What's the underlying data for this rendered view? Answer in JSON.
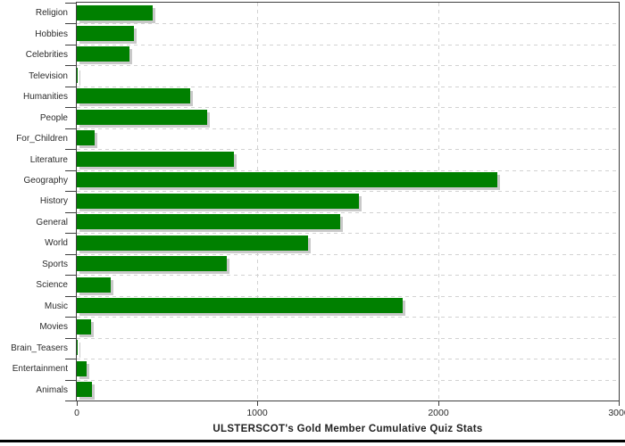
{
  "chart_data": {
    "type": "bar",
    "orientation": "horizontal",
    "title": "ULSTERSCOT's Gold Member Cumulative Quiz Stats",
    "categories": [
      "Religion",
      "Hobbies",
      "Celebrities",
      "Television",
      "Humanities",
      "People",
      "For_Children",
      "Literature",
      "Geography",
      "History",
      "General",
      "World",
      "Sports",
      "Science",
      "Music",
      "Movies",
      "Brain_Teasers",
      "Entertainment",
      "Animals"
    ],
    "values": [
      420,
      315,
      290,
      5,
      630,
      720,
      100,
      870,
      2330,
      1560,
      1460,
      1280,
      830,
      190,
      1805,
      80,
      5,
      55,
      85
    ],
    "xlabel": "",
    "ylabel": "",
    "xlim": [
      0,
      3000
    ],
    "xticks": [
      0,
      1000,
      2000,
      3000
    ],
    "grid": true,
    "legend": false,
    "bar_color": "#008000",
    "shadow_color": "#c9c9c9",
    "grid_color": "#d2d2d2",
    "axis_color": "#3f3f3f",
    "text_color": "#2b2b2b",
    "background": "#ffffff",
    "bottom_edge_color": "#000000"
  }
}
